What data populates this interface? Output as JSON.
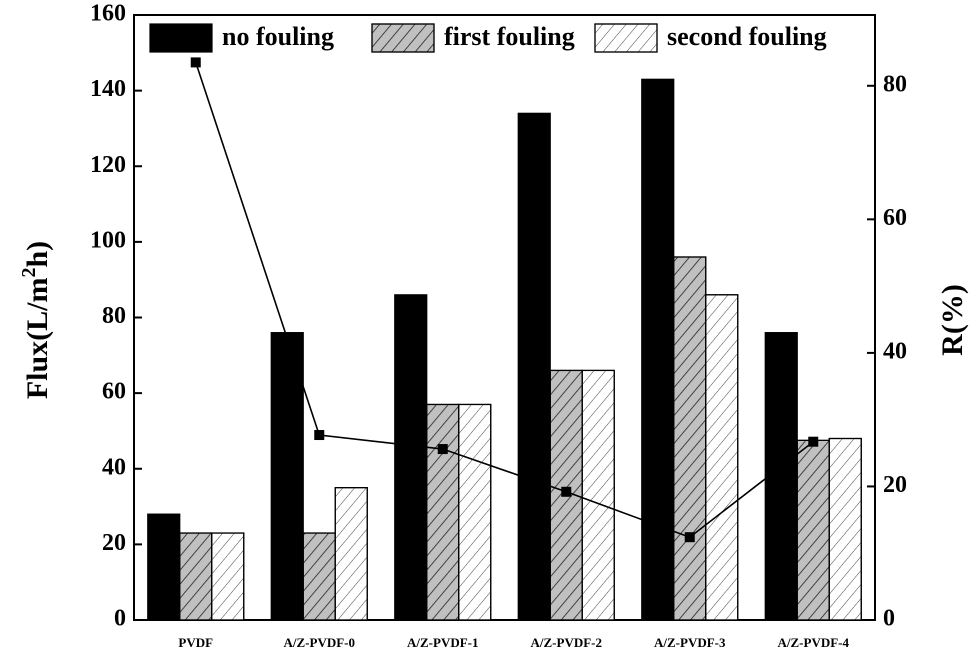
{
  "chart_data": {
    "type": "bar",
    "categories": [
      "PVDF",
      "A/Z-PVDF-0",
      "A/Z-PVDF-1",
      "A/Z-PVDF-2",
      "A/Z-PVDF-3",
      "A/Z-PVDF-4"
    ],
    "y_label": [
      "Flux(L/m",
      "2",
      "h)"
    ],
    "y2_label": "R(%)",
    "series": [
      {
        "name": "no fouling",
        "color": "#000000",
        "values": [
          28,
          76,
          86,
          134,
          143,
          76
        ]
      },
      {
        "name": "first fouling",
        "color": "#c0c0c0",
        "values": [
          23,
          23,
          57,
          66,
          96,
          47.5
        ]
      },
      {
        "name": "second fouling",
        "color": "#ffffff",
        "values": [
          23,
          35,
          57,
          66,
          86,
          48
        ]
      },
      {
        "type": "line",
        "axis": "y2",
        "color": "#000000",
        "values": [
          83.5,
          27.7,
          25.6,
          19.2,
          12.4,
          26.7
        ]
      }
    ],
    "ylim": [
      0,
      160
    ],
    "yticks": [
      0,
      20,
      40,
      60,
      80,
      100,
      120,
      140,
      160
    ],
    "y2lim": [
      0,
      90.6
    ],
    "y2ticks": [
      0,
      20,
      40,
      60,
      80
    ]
  }
}
